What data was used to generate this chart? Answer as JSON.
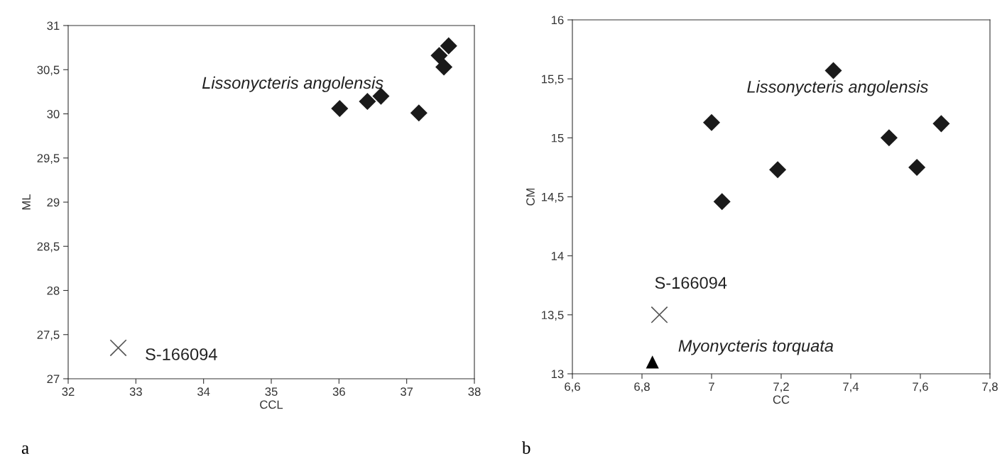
{
  "chart_data": [
    {
      "type": "scatter",
      "xlabel": "CCL",
      "ylabel": "ML",
      "annotations": [
        "a"
      ],
      "grid": false,
      "legend": false,
      "xlim": [
        32,
        38
      ],
      "xticks": [
        32,
        33,
        34,
        35,
        36,
        37,
        38
      ],
      "ylim": [
        27,
        31
      ],
      "yticks": [
        27,
        {
          "value": 27.5,
          "label": "27,5"
        },
        28,
        {
          "value": 28.5,
          "label": "28,5"
        },
        29,
        {
          "value": 29.5,
          "label": "29,5"
        },
        30,
        {
          "value": 30.5,
          "label": "30,5"
        },
        31
      ],
      "series": [
        {
          "name": "Lissonycteris angolensis",
          "color": "#1a1a1a",
          "marker": "diamond",
          "x": [
            36.01,
            36.42,
            36.62,
            37.18,
            37.48,
            37.55,
            37.62
          ],
          "values": [
            30.06,
            30.14,
            30.2,
            30.01,
            30.66,
            30.53,
            30.77
          ]
        },
        {
          "name": "S-166094",
          "color": "#555555",
          "marker": "cross",
          "x": [
            32.74
          ],
          "values": [
            27.35
          ]
        }
      ]
    },
    {
      "type": "scatter",
      "xlabel": "CC",
      "ylabel": "CM",
      "annotations": [
        "b"
      ],
      "grid": false,
      "legend": false,
      "xlim": [
        6.6,
        7.8
      ],
      "xticks": [
        {
          "value": 6.6,
          "label": "6,6"
        },
        {
          "value": 6.8,
          "label": "6,8"
        },
        7,
        {
          "value": 7.2,
          "label": "7,2"
        },
        {
          "value": 7.4,
          "label": "7,4"
        },
        {
          "value": 7.6,
          "label": "7,6"
        },
        {
          "value": 7.8,
          "label": "7,8"
        }
      ],
      "ylim": [
        13,
        16
      ],
      "yticks": [
        13,
        {
          "value": 13.5,
          "label": "13,5"
        },
        14,
        {
          "value": 14.5,
          "label": "14,5"
        },
        15,
        {
          "value": 15.5,
          "label": "15,5"
        },
        16
      ],
      "series": [
        {
          "name": "Lissonycteris angolensis",
          "color": "#1a1a1a",
          "marker": "diamond",
          "x": [
            7.0,
            7.03,
            7.19,
            7.35,
            7.51,
            7.59,
            7.66
          ],
          "values": [
            15.13,
            14.46,
            14.73,
            15.57,
            15.0,
            14.75,
            15.12
          ]
        },
        {
          "name": "S-166094",
          "color": "#555555",
          "marker": "cross",
          "x": [
            6.85
          ],
          "values": [
            13.5
          ]
        },
        {
          "name": "Myonycteris torquata",
          "color": "#000000",
          "marker": "triangle",
          "x": [
            6.83
          ],
          "values": [
            13.1
          ]
        }
      ]
    }
  ]
}
